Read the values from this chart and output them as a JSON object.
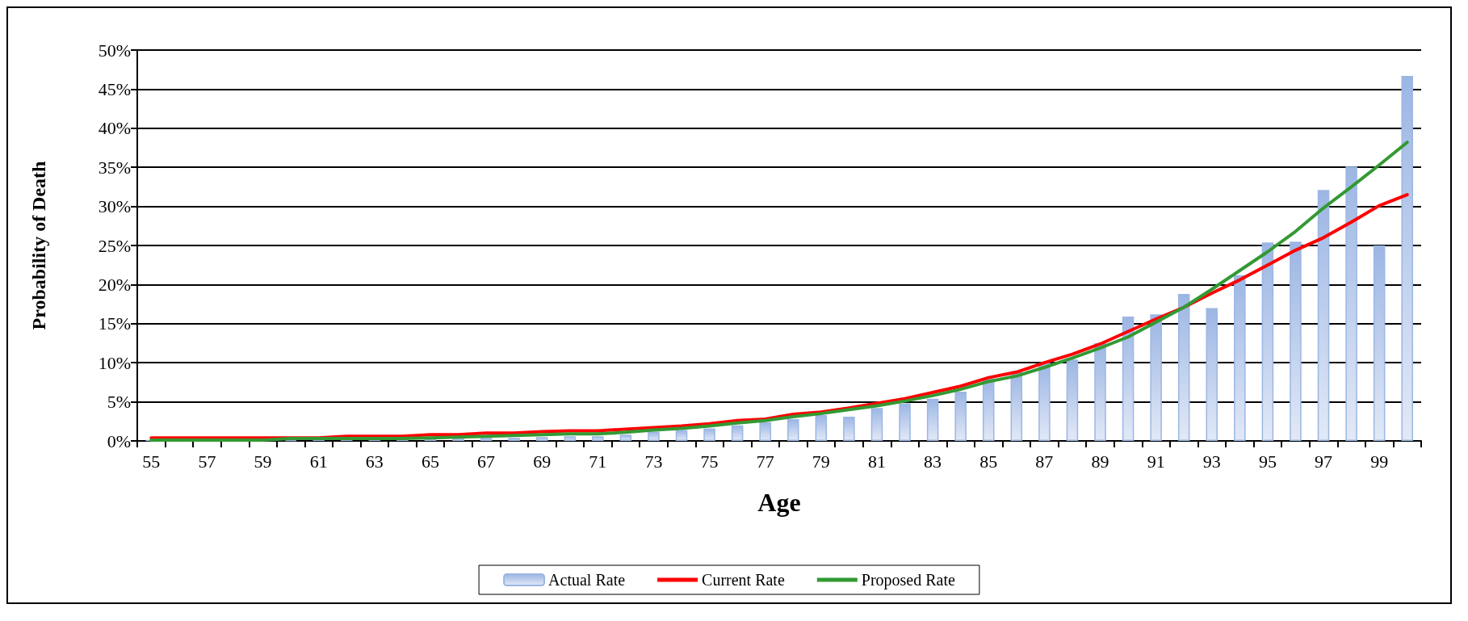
{
  "chart_data": {
    "type": "bar",
    "xlabel": "Age",
    "ylabel": "Probability of Death",
    "categories": [
      "55",
      null,
      "57",
      null,
      "59",
      null,
      "61",
      null,
      "63",
      null,
      "65",
      null,
      "67",
      null,
      "69",
      null,
      "71",
      null,
      "73",
      null,
      "75",
      null,
      "77",
      null,
      "79",
      null,
      "81",
      null,
      "83",
      null,
      "85",
      null,
      "87",
      null,
      "89",
      null,
      "91",
      null,
      "93",
      null,
      "95",
      null,
      "97",
      null,
      "99",
      null
    ],
    "series": [
      {
        "name": "Actual Rate",
        "color": "#9cb6e4",
        "values": [
          0.1,
          null,
          null,
          null,
          null,
          0.1,
          0.2,
          0.2,
          0.2,
          0.2,
          0.2,
          0.4,
          0.4,
          0.4,
          0.5,
          0.6,
          0.6,
          0.8,
          1.2,
          1.4,
          1.6,
          2.0,
          2.4,
          2.8,
          3.3,
          3.1,
          4.2,
          4.8,
          5.4,
          6.3,
          8.0,
          8.9,
          10.0,
          10.4,
          12.5,
          15.9,
          16.2,
          18.8,
          17.0,
          21.2,
          25.4,
          25.5,
          32.1,
          35.1,
          25.0,
          46.7
        ]
      },
      {
        "name": "Current Rate",
        "type": "line",
        "color": "#ff0000",
        "values": [
          0.4,
          0.4,
          0.4,
          0.4,
          0.4,
          0.4,
          0.4,
          0.6,
          0.6,
          0.6,
          0.8,
          0.8,
          1.0,
          1.0,
          1.2,
          1.3,
          1.3,
          1.5,
          1.7,
          1.9,
          2.2,
          2.6,
          2.8,
          3.4,
          3.7,
          4.2,
          4.8,
          5.4,
          6.2,
          7.0,
          8.1,
          8.8,
          10.0,
          11.1,
          12.4,
          14.0,
          15.6,
          17.1,
          18.9,
          20.6,
          22.5,
          24.4,
          26.0,
          28.0,
          30.1,
          31.5
        ]
      },
      {
        "name": "Proposed Rate",
        "type": "line",
        "color": "#339933",
        "values": [
          0.1,
          0.1,
          0.1,
          0.1,
          0.1,
          0.3,
          0.3,
          0.3,
          0.3,
          0.3,
          0.4,
          0.5,
          0.6,
          0.7,
          0.8,
          0.9,
          0.9,
          1.1,
          1.4,
          1.6,
          1.9,
          2.3,
          2.6,
          3.1,
          3.5,
          4.0,
          4.5,
          5.1,
          5.8,
          6.6,
          7.6,
          8.3,
          9.4,
          10.6,
          11.9,
          13.3,
          15.2,
          17.1,
          19.4,
          21.8,
          24.2,
          26.8,
          29.8,
          32.5,
          35.3,
          38.2
        ]
      }
    ],
    "ylim": [
      0,
      50
    ],
    "yticks": [
      {
        "value": 0,
        "label": "0%"
      },
      {
        "value": 5,
        "label": "5%"
      },
      {
        "value": 10,
        "label": "10%"
      },
      {
        "value": 15,
        "label": "15%"
      },
      {
        "value": 20,
        "label": "20%"
      },
      {
        "value": 25,
        "label": "25%"
      },
      {
        "value": 30,
        "label": "30%"
      },
      {
        "value": 35,
        "label": "35%"
      },
      {
        "value": 40,
        "label": "40%"
      },
      {
        "value": 45,
        "label": "45%"
      },
      {
        "value": 50,
        "label": "50%"
      }
    ],
    "grid": "y",
    "legend": "bottom",
    "marker": "none",
    "line_style": "solid"
  }
}
